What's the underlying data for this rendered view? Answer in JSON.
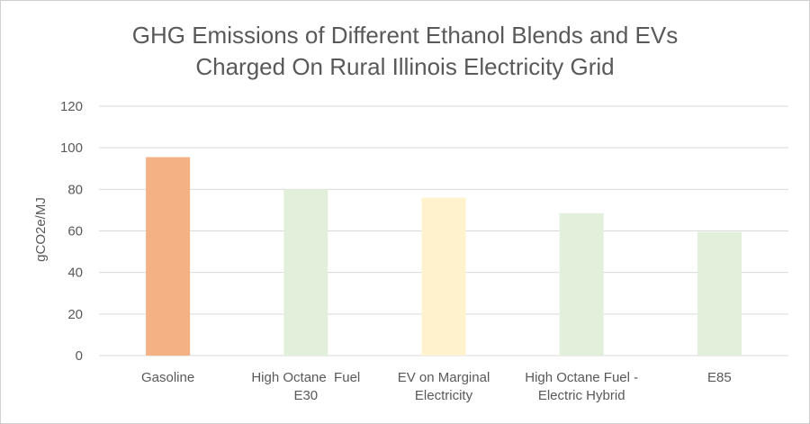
{
  "chart_data": {
    "type": "bar",
    "title_lines": [
      "GHG Emissions of Different Ethanol Blends and EVs",
      "Charged On Rural Illinois Electricity Grid"
    ],
    "xlabel": "",
    "ylabel": "gCO2e/MJ",
    "ylim": [
      0,
      120
    ],
    "yticks": [
      0,
      20,
      40,
      60,
      80,
      100,
      120
    ],
    "grid": true,
    "categories": [
      [
        "Gasoline"
      ],
      [
        "High Octane  Fuel",
        "E30"
      ],
      [
        "EV on Marginal",
        "Electricity"
      ],
      [
        "High Octane Fuel -",
        "Electric Hybrid"
      ],
      [
        "E85"
      ]
    ],
    "values": [
      95.5,
      80,
      76,
      68.5,
      59.5
    ],
    "colors": [
      "#F4B183",
      "#E2EFDA",
      "#FFF2CC",
      "#E2EFDA",
      "#E2EFDA"
    ]
  }
}
